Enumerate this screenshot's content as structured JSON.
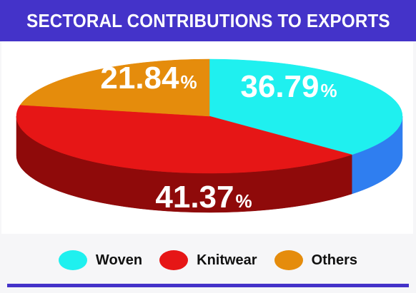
{
  "title": "SECTORAL CONTRIBUTIONS TO EXPORTS",
  "colors": {
    "title_bg": "#4433c9",
    "woven_top": "#1ff0ef",
    "woven_side": "#2f7ef0",
    "knitwear_top": "#e61616",
    "knitwear_side": "#8f0a0a",
    "others_top": "#e58c0c",
    "others_side": "#a86006"
  },
  "chart_data": {
    "type": "pie",
    "title": "SECTORAL CONTRIBUTIONS TO EXPORTS",
    "unit": "%",
    "slices": [
      {
        "name": "Woven",
        "value": 36.79,
        "label": "36.79",
        "color": "#1ff0ef"
      },
      {
        "name": "Knitwear",
        "value": 41.37,
        "label": "41.37",
        "color": "#e61616"
      },
      {
        "name": "Others",
        "value": 21.84,
        "label": "21.84",
        "color": "#e58c0c"
      }
    ],
    "legend_placement": "bottom"
  },
  "legend": [
    {
      "label": "Woven",
      "color": "#1ff0ef"
    },
    {
      "label": "Knitwear",
      "color": "#e61616"
    },
    {
      "label": "Others",
      "color": "#e58c0c"
    }
  ]
}
